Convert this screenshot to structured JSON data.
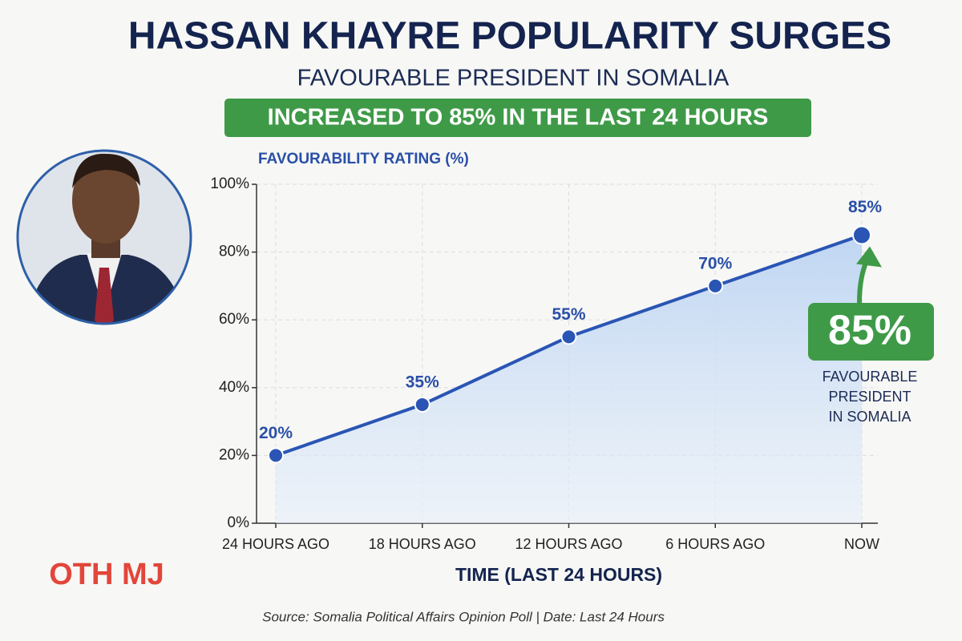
{
  "chart_data": {
    "type": "line",
    "title": "HASSAN KHAYRE POPULARITY SURGES",
    "subtitle": "FAVOURABLE PRESIDENT IN SOMALIA",
    "banner": "INCREASED TO 85% IN THE LAST 24 HOURS",
    "y_label": "FAVOURABILITY RATING (%)",
    "x_label": "TIME (LAST 24 HOURS)",
    "categories": [
      "24 HOURS AGO",
      "18 HOURS AGO",
      "12 HOURS AGO",
      "6 HOURS AGO",
      "NOW"
    ],
    "series": [
      {
        "name": "Favourability rating",
        "color": "#2a55b5",
        "values": [
          20,
          35,
          55,
          70,
          85
        ],
        "value_labels": [
          "20%",
          "35%",
          "55%",
          "70%",
          "85%"
        ]
      }
    ],
    "ylim": [
      0,
      100
    ],
    "yticks": [
      {
        "value": 0,
        "label": "0%"
      },
      {
        "value": 20,
        "label": "20%"
      },
      {
        "value": 40,
        "label": "40%"
      },
      {
        "value": 60,
        "label": "60%"
      },
      {
        "value": 80,
        "label": "80%"
      },
      {
        "value": 100,
        "label": "100%"
      }
    ],
    "grid": true,
    "callout": {
      "value": 85,
      "label": "85%",
      "lines": [
        "FAVOURABLE",
        "PRESIDENT",
        "IN SOMALIA"
      ]
    },
    "watermark": "OTH MJ",
    "source": "Source: Somalia Political Affairs Opinion Poll | Date: Last 24 Hours"
  }
}
